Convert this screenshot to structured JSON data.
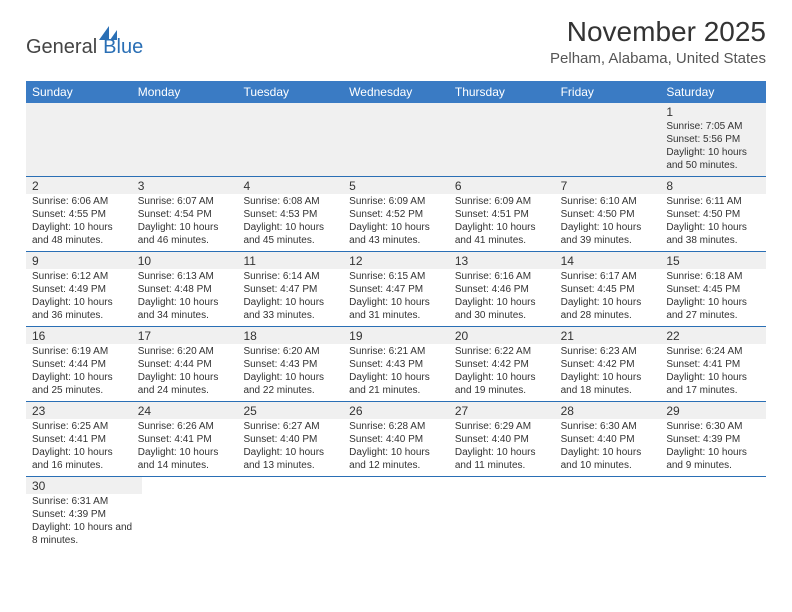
{
  "logo": {
    "text1": "General",
    "text2": "Blue",
    "icon_color": "#2a6fb5"
  },
  "header": {
    "month_title": "November 2025",
    "location": "Pelham, Alabama, United States"
  },
  "colors": {
    "header_bg": "#3a7bc4",
    "header_text": "#ffffff",
    "border": "#2a6fb5",
    "gray_bg": "#f0f0f0",
    "text": "#333333"
  },
  "day_names": [
    "Sunday",
    "Monday",
    "Tuesday",
    "Wednesday",
    "Thursday",
    "Friday",
    "Saturday"
  ],
  "weeks": [
    [
      null,
      null,
      null,
      null,
      null,
      null,
      {
        "num": "1",
        "sunrise": "7:05 AM",
        "sunset": "5:56 PM",
        "daylight": "10 hours and 50 minutes."
      }
    ],
    [
      {
        "num": "2",
        "sunrise": "6:06 AM",
        "sunset": "4:55 PM",
        "daylight": "10 hours and 48 minutes."
      },
      {
        "num": "3",
        "sunrise": "6:07 AM",
        "sunset": "4:54 PM",
        "daylight": "10 hours and 46 minutes."
      },
      {
        "num": "4",
        "sunrise": "6:08 AM",
        "sunset": "4:53 PM",
        "daylight": "10 hours and 45 minutes."
      },
      {
        "num": "5",
        "sunrise": "6:09 AM",
        "sunset": "4:52 PM",
        "daylight": "10 hours and 43 minutes."
      },
      {
        "num": "6",
        "sunrise": "6:09 AM",
        "sunset": "4:51 PM",
        "daylight": "10 hours and 41 minutes."
      },
      {
        "num": "7",
        "sunrise": "6:10 AM",
        "sunset": "4:50 PM",
        "daylight": "10 hours and 39 minutes."
      },
      {
        "num": "8",
        "sunrise": "6:11 AM",
        "sunset": "4:50 PM",
        "daylight": "10 hours and 38 minutes."
      }
    ],
    [
      {
        "num": "9",
        "sunrise": "6:12 AM",
        "sunset": "4:49 PM",
        "daylight": "10 hours and 36 minutes."
      },
      {
        "num": "10",
        "sunrise": "6:13 AM",
        "sunset": "4:48 PM",
        "daylight": "10 hours and 34 minutes."
      },
      {
        "num": "11",
        "sunrise": "6:14 AM",
        "sunset": "4:47 PM",
        "daylight": "10 hours and 33 minutes."
      },
      {
        "num": "12",
        "sunrise": "6:15 AM",
        "sunset": "4:47 PM",
        "daylight": "10 hours and 31 minutes."
      },
      {
        "num": "13",
        "sunrise": "6:16 AM",
        "sunset": "4:46 PM",
        "daylight": "10 hours and 30 minutes."
      },
      {
        "num": "14",
        "sunrise": "6:17 AM",
        "sunset": "4:45 PM",
        "daylight": "10 hours and 28 minutes."
      },
      {
        "num": "15",
        "sunrise": "6:18 AM",
        "sunset": "4:45 PM",
        "daylight": "10 hours and 27 minutes."
      }
    ],
    [
      {
        "num": "16",
        "sunrise": "6:19 AM",
        "sunset": "4:44 PM",
        "daylight": "10 hours and 25 minutes."
      },
      {
        "num": "17",
        "sunrise": "6:20 AM",
        "sunset": "4:44 PM",
        "daylight": "10 hours and 24 minutes."
      },
      {
        "num": "18",
        "sunrise": "6:20 AM",
        "sunset": "4:43 PM",
        "daylight": "10 hours and 22 minutes."
      },
      {
        "num": "19",
        "sunrise": "6:21 AM",
        "sunset": "4:43 PM",
        "daylight": "10 hours and 21 minutes."
      },
      {
        "num": "20",
        "sunrise": "6:22 AM",
        "sunset": "4:42 PM",
        "daylight": "10 hours and 19 minutes."
      },
      {
        "num": "21",
        "sunrise": "6:23 AM",
        "sunset": "4:42 PM",
        "daylight": "10 hours and 18 minutes."
      },
      {
        "num": "22",
        "sunrise": "6:24 AM",
        "sunset": "4:41 PM",
        "daylight": "10 hours and 17 minutes."
      }
    ],
    [
      {
        "num": "23",
        "sunrise": "6:25 AM",
        "sunset": "4:41 PM",
        "daylight": "10 hours and 16 minutes."
      },
      {
        "num": "24",
        "sunrise": "6:26 AM",
        "sunset": "4:41 PM",
        "daylight": "10 hours and 14 minutes."
      },
      {
        "num": "25",
        "sunrise": "6:27 AM",
        "sunset": "4:40 PM",
        "daylight": "10 hours and 13 minutes."
      },
      {
        "num": "26",
        "sunrise": "6:28 AM",
        "sunset": "4:40 PM",
        "daylight": "10 hours and 12 minutes."
      },
      {
        "num": "27",
        "sunrise": "6:29 AM",
        "sunset": "4:40 PM",
        "daylight": "10 hours and 11 minutes."
      },
      {
        "num": "28",
        "sunrise": "6:30 AM",
        "sunset": "4:40 PM",
        "daylight": "10 hours and 10 minutes."
      },
      {
        "num": "29",
        "sunrise": "6:30 AM",
        "sunset": "4:39 PM",
        "daylight": "10 hours and 9 minutes."
      }
    ],
    [
      {
        "num": "30",
        "sunrise": "6:31 AM",
        "sunset": "4:39 PM",
        "daylight": "10 hours and 8 minutes."
      },
      null,
      null,
      null,
      null,
      null,
      null
    ]
  ],
  "labels": {
    "sunrise": "Sunrise:",
    "sunset": "Sunset:",
    "daylight": "Daylight:"
  }
}
